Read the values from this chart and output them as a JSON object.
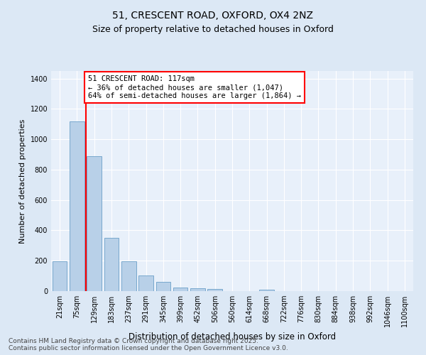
{
  "title": "51, CRESCENT ROAD, OXFORD, OX4 2NZ",
  "subtitle": "Size of property relative to detached houses in Oxford",
  "xlabel": "Distribution of detached houses by size in Oxford",
  "ylabel": "Number of detached properties",
  "categories": [
    "21sqm",
    "75sqm",
    "129sqm",
    "183sqm",
    "237sqm",
    "291sqm",
    "345sqm",
    "399sqm",
    "452sqm",
    "506sqm",
    "560sqm",
    "614sqm",
    "668sqm",
    "722sqm",
    "776sqm",
    "830sqm",
    "884sqm",
    "938sqm",
    "992sqm",
    "1046sqm",
    "1100sqm"
  ],
  "values": [
    195,
    1120,
    890,
    350,
    195,
    105,
    60,
    25,
    20,
    15,
    0,
    0,
    10,
    0,
    0,
    0,
    0,
    0,
    0,
    0,
    0
  ],
  "bar_color": "#b8d0e8",
  "bar_edgecolor": "#6a9fc8",
  "vline_x_index": 2,
  "vline_color": "red",
  "annotation_text": "51 CRESCENT ROAD: 117sqm\n← 36% of detached houses are smaller (1,047)\n64% of semi-detached houses are larger (1,864) →",
  "annotation_box_color": "white",
  "annotation_box_edgecolor": "red",
  "ylim": [
    0,
    1450
  ],
  "yticks": [
    0,
    200,
    400,
    600,
    800,
    1000,
    1200,
    1400
  ],
  "bg_color": "#dce8f5",
  "plot_bg_color": "#e8f0fa",
  "grid_color": "white",
  "footer_line1": "Contains HM Land Registry data © Crown copyright and database right 2025.",
  "footer_line2": "Contains public sector information licensed under the Open Government Licence v3.0.",
  "title_fontsize": 10,
  "subtitle_fontsize": 9,
  "xlabel_fontsize": 8.5,
  "ylabel_fontsize": 8,
  "tick_fontsize": 7,
  "annotation_fontsize": 7.5,
  "footer_fontsize": 6.5
}
